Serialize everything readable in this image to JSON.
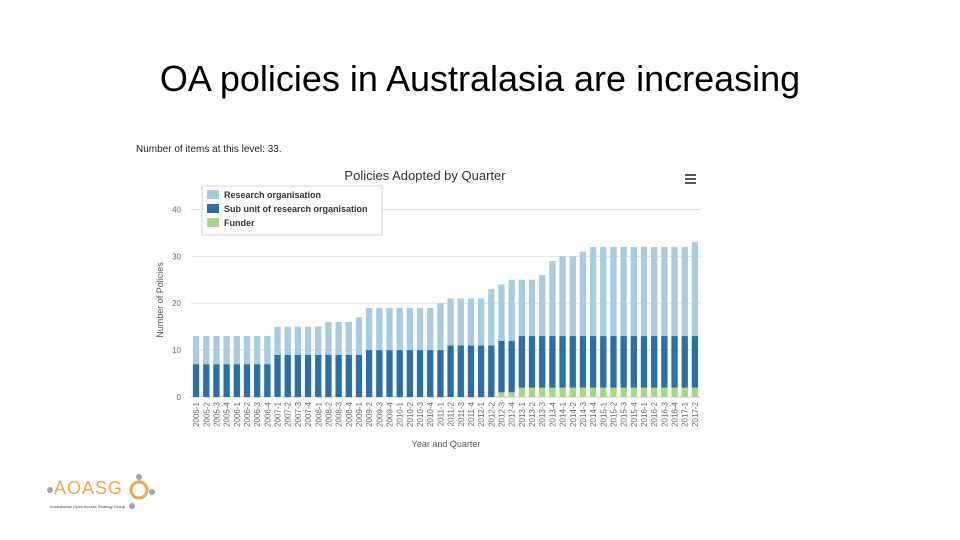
{
  "slide": {
    "title": "OA policies in Australasia are increasing",
    "items_note": "Number of items at this level: 33."
  },
  "logo": {
    "text": "AOASG",
    "subtitle": "Australasian Open Access Strategy Group"
  },
  "menu_icon": "hamburger-menu-icon",
  "chart_data": {
    "type": "bar",
    "stacked": true,
    "title": "Policies Adopted by Quarter",
    "xlabel": "Year and Quarter",
    "ylabel": "Number of Policies",
    "ylim": [
      0,
      45
    ],
    "yticks": [
      0,
      10,
      20,
      30,
      40
    ],
    "grid": true,
    "legend_position": "top-left",
    "categories": [
      "2005-1",
      "2005-2",
      "2005-3",
      "2005-4",
      "2006-1",
      "2006-2",
      "2006-3",
      "2006-4",
      "2007-1",
      "2007-2",
      "2007-3",
      "2007-4",
      "2008-1",
      "2008-2",
      "2008-3",
      "2008-4",
      "2009-1",
      "2009-2",
      "2009-3",
      "2009-4",
      "2010-1",
      "2010-2",
      "2010-3",
      "2010-4",
      "2011-1",
      "2011-2",
      "2011-3",
      "2011-4",
      "2012-1",
      "2012-2",
      "2012-3",
      "2012-4",
      "2013-1",
      "2013-2",
      "2013-3",
      "2013-4",
      "2014-1",
      "2014-2",
      "2014-3",
      "2014-4",
      "2015-1",
      "2015-2",
      "2015-3",
      "2015-4",
      "2016-1",
      "2016-2",
      "2016-3",
      "2016-4",
      "2017-1",
      "2017-2"
    ],
    "series": [
      {
        "name": "Funder",
        "color": "#a6d785",
        "values": [
          0,
          0,
          0,
          0,
          0,
          0,
          0,
          0,
          0,
          0,
          0,
          0,
          0,
          0,
          0,
          0,
          0,
          0,
          0,
          0,
          0,
          0,
          0,
          0,
          0,
          0,
          0,
          0,
          0,
          0,
          1,
          1,
          2,
          2,
          2,
          2,
          2,
          2,
          2,
          2,
          2,
          2,
          2,
          2,
          2,
          2,
          2,
          2,
          2,
          2
        ]
      },
      {
        "name": "Sub  unit of research organisation",
        "color": "#2a6fa8",
        "values": [
          7,
          7,
          7,
          7,
          7,
          7,
          7,
          7,
          9,
          9,
          9,
          9,
          9,
          9,
          9,
          9,
          9,
          10,
          10,
          10,
          10,
          10,
          10,
          10,
          10,
          11,
          11,
          11,
          11,
          11,
          11,
          11,
          11,
          11,
          11,
          11,
          11,
          11,
          11,
          11,
          11,
          11,
          11,
          11,
          11,
          11,
          11,
          11,
          11,
          11
        ]
      },
      {
        "name": "Research organisation",
        "color": "#a9cce0",
        "values": [
          6,
          6,
          6,
          6,
          6,
          6,
          6,
          6,
          6,
          6,
          6,
          6,
          6,
          7,
          7,
          7,
          8,
          9,
          9,
          9,
          9,
          9,
          9,
          9,
          10,
          10,
          10,
          10,
          10,
          12,
          12,
          13,
          12,
          12,
          13,
          16,
          17,
          17,
          18,
          19,
          19,
          19,
          19,
          19,
          19,
          19,
          19,
          19,
          19,
          20
        ]
      }
    ]
  }
}
